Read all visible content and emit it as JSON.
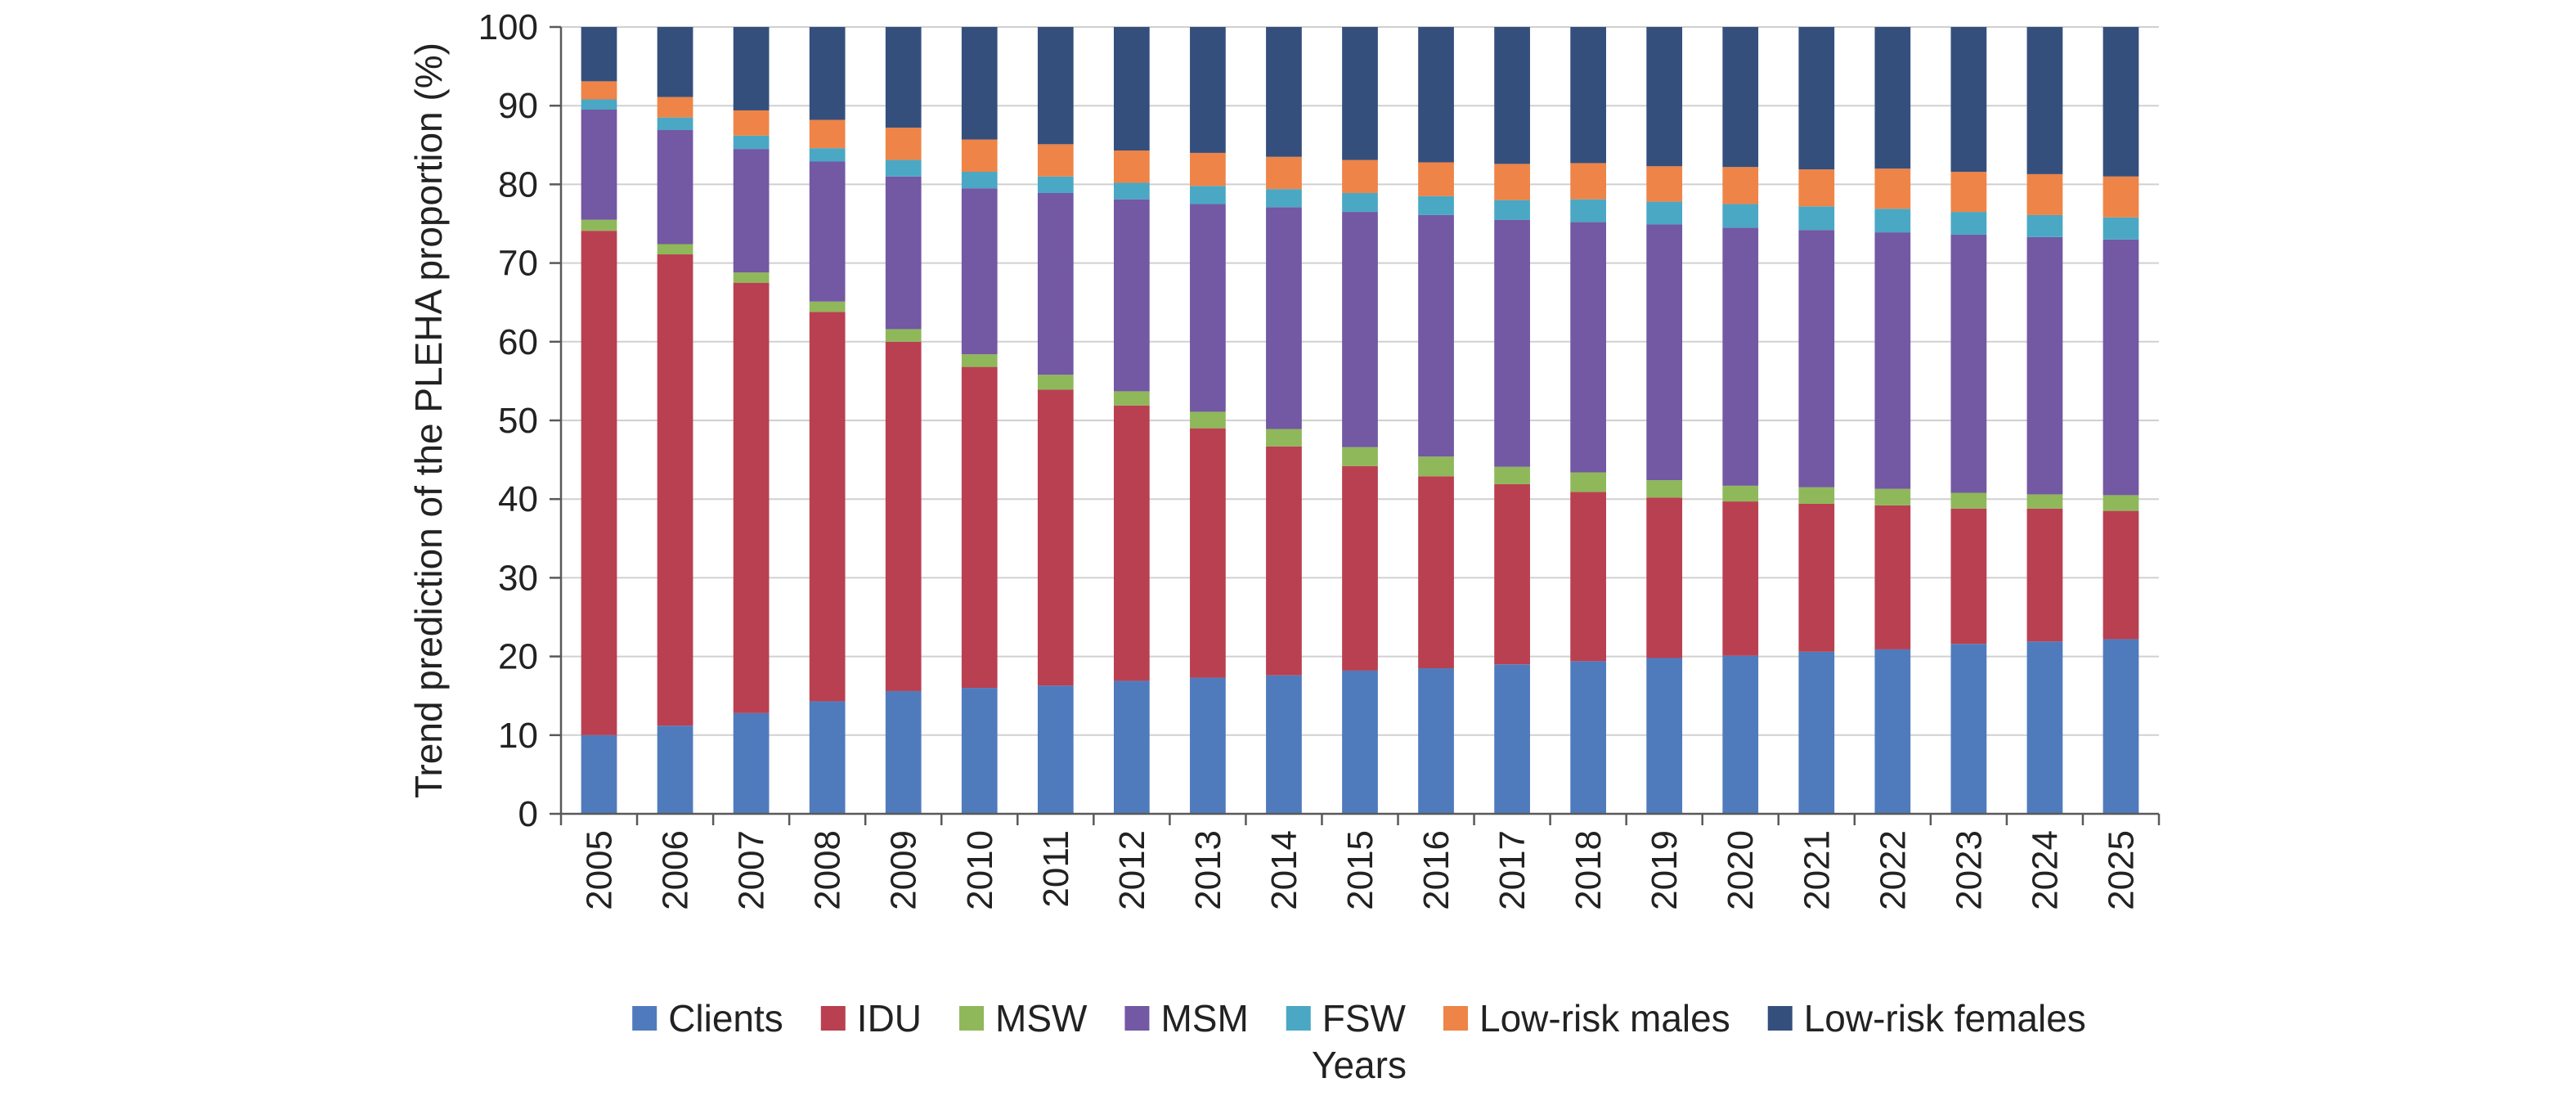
{
  "chart_data": {
    "type": "bar",
    "stacked": true,
    "title": "",
    "xlabel": "Years",
    "ylabel": "Trend prediction of the PLEHA proportion (%)",
    "ylim": [
      0,
      100
    ],
    "yticks": [
      0,
      10,
      20,
      30,
      40,
      50,
      60,
      70,
      80,
      90,
      100
    ],
    "grid": true,
    "legend_position": "bottom",
    "categories": [
      "2005",
      "2006",
      "2007",
      "2008",
      "2009",
      "2010",
      "2011",
      "2012",
      "2013",
      "2014",
      "2015",
      "2016",
      "2017",
      "2018",
      "2019",
      "2020",
      "2021",
      "2022",
      "2023",
      "2024",
      "2025"
    ],
    "series": [
      {
        "name": "Clients",
        "color": "#4f7bbd",
        "values": [
          10.0,
          11.2,
          12.8,
          14.3,
          15.6,
          16.0,
          16.3,
          16.9,
          17.3,
          17.6,
          18.2,
          18.5,
          19.0,
          19.4,
          19.8,
          20.1,
          20.6,
          20.9,
          21.6,
          21.9,
          22.2
        ]
      },
      {
        "name": "IDU",
        "color": "#b94051",
        "values": [
          64.1,
          59.9,
          54.7,
          49.5,
          44.4,
          40.8,
          37.6,
          35.0,
          31.7,
          29.1,
          26.0,
          24.4,
          22.9,
          21.5,
          20.4,
          19.6,
          18.8,
          18.3,
          17.2,
          16.9,
          16.3
        ]
      },
      {
        "name": "MSW",
        "color": "#8fb85a",
        "values": [
          1.4,
          1.3,
          1.3,
          1.3,
          1.6,
          1.6,
          1.9,
          1.8,
          2.1,
          2.2,
          2.4,
          2.5,
          2.2,
          2.5,
          2.2,
          2.0,
          2.1,
          2.1,
          2.0,
          1.8,
          2.0
        ]
      },
      {
        "name": "MSM",
        "color": "#7358a3",
        "values": [
          14.0,
          14.5,
          15.7,
          17.8,
          19.4,
          21.1,
          23.1,
          24.4,
          26.4,
          28.2,
          29.9,
          30.7,
          31.4,
          31.8,
          32.5,
          32.8,
          32.7,
          32.6,
          32.8,
          32.7,
          32.5
        ]
      },
      {
        "name": "FSW",
        "color": "#4aa8c4",
        "values": [
          1.3,
          1.6,
          1.7,
          1.7,
          2.1,
          2.1,
          2.1,
          2.1,
          2.3,
          2.3,
          2.4,
          2.4,
          2.5,
          2.9,
          2.9,
          3.0,
          3.0,
          3.0,
          2.9,
          2.8,
          2.8
        ]
      },
      {
        "name": "Low-risk males",
        "color": "#ee8447",
        "values": [
          2.3,
          2.6,
          3.2,
          3.6,
          4.1,
          4.1,
          4.1,
          4.1,
          4.2,
          4.1,
          4.2,
          4.3,
          4.6,
          4.6,
          4.5,
          4.7,
          4.7,
          5.1,
          5.1,
          5.2,
          5.2
        ]
      },
      {
        "name": "Low-risk females",
        "color": "#354f7d",
        "values": [
          6.9,
          8.9,
          10.6,
          11.8,
          12.8,
          14.3,
          14.9,
          15.7,
          16.0,
          16.5,
          16.9,
          17.2,
          17.4,
          17.3,
          17.7,
          17.8,
          18.1,
          18.0,
          18.4,
          18.7,
          19.0
        ]
      }
    ]
  }
}
